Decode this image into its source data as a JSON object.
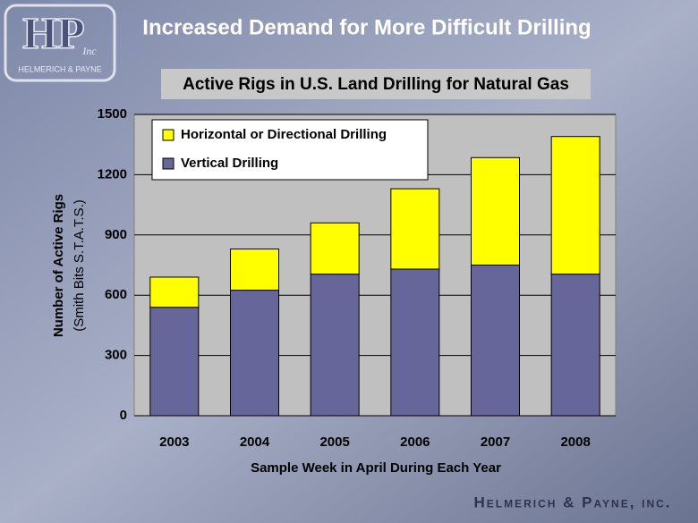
{
  "header": {
    "title": "Increased Demand for More Difficult Drilling",
    "logo_mark": "HP",
    "logo_inc": "Inc",
    "logo_name": "HELMERICH & PAYNE"
  },
  "chart_data": {
    "type": "stacked-bar",
    "title": "Active Rigs in U.S. Land Drilling for Natural Gas",
    "y_label": [
      "Number of Active Rigs",
      "(Smith Bits S.T.A.T.S.)"
    ],
    "x_label": "Sample Week in April During Each Year",
    "categories": [
      "2003",
      "2004",
      "2005",
      "2006",
      "2007",
      "2008"
    ],
    "series": [
      {
        "name": "Vertical Drilling",
        "color": "#66669a",
        "values": [
          540,
          625,
          705,
          730,
          750,
          705
        ]
      },
      {
        "name": "Horizontal or Directional Drilling",
        "color": "#ffff00",
        "values": [
          150,
          205,
          255,
          400,
          535,
          685
        ]
      }
    ],
    "ylim": [
      0,
      1500
    ],
    "yticks": [
      0,
      300,
      600,
      900,
      1200,
      1500
    ],
    "grid": true,
    "legend": "top-left"
  },
  "footer": "Helmerich & Payne, inc."
}
